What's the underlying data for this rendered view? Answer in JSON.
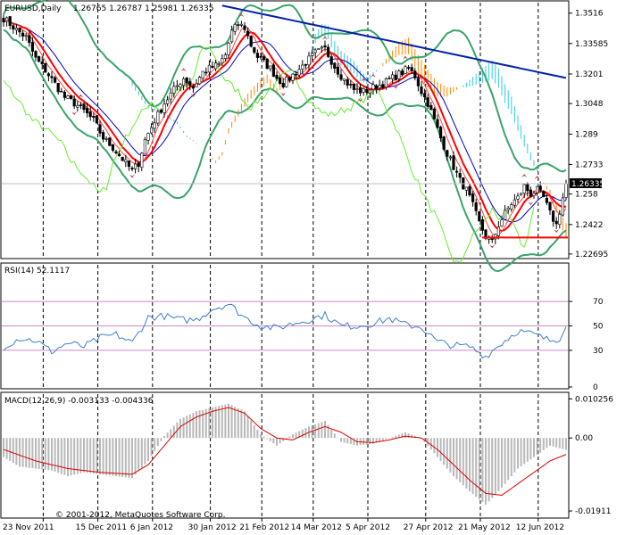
{
  "chart_header": {
    "symbol_period": "EURUSD,Daily",
    "quote": "1.26765 1.26787 1.25981 1.26335"
  },
  "rsi_header": {
    "label": "RSI(14) 52.1117"
  },
  "macd_header": {
    "label": "MACD(12,26,9) -0.003133 -0.004336"
  },
  "copyright": "© 2001-2012, MetaQuotes Software Corp.",
  "colors": {
    "background": "#ffffff",
    "candle_bull": "#ffffff",
    "candle_bear": "#000000",
    "bollinger": "#3aa36a",
    "ma_fast": "#ff0000",
    "ma_blue": "#0000cc",
    "ma_long": "#0022aa",
    "chikou": "#66ee33",
    "kumo_bull": "#ff8800",
    "kumo_bear": "#33ccdd",
    "fractal": "#cc3344",
    "rsi_line": "#3a7fd0",
    "rsi_levels": "#cc88cc",
    "macd_hist": "#b8b8b8",
    "macd_signal": "#dd0000",
    "current_price_box": "#000000"
  },
  "chart_data": [
    {
      "type": "candlestick",
      "panel": "price",
      "x_ticks": [
        "23 Nov 2011",
        "15 Dec 2011",
        "6 Jan 2012",
        "30 Jan 2012",
        "21 Feb 2012",
        "14 Mar 2012",
        "5 Apr 2012",
        "27 Apr 2012",
        "21 May 2012",
        "12 Jun 2012"
      ],
      "y_ticks": [
        1.3516,
        1.33585,
        1.3201,
        1.3048,
        1.289,
        1.2733,
        1.258,
        1.2422,
        1.22695
      ],
      "ylim": [
        1.2255,
        1.357
      ],
      "current_price": 1.26335,
      "support_level": 1.2355,
      "close_path": [
        [
          0,
          1.349
        ],
        [
          4,
          1.343
        ],
        [
          7,
          1.339
        ],
        [
          10,
          1.328
        ],
        [
          13,
          1.322
        ],
        [
          16,
          1.315
        ],
        [
          19,
          1.308
        ],
        [
          22,
          1.305
        ],
        [
          25,
          1.301
        ],
        [
          28,
          1.296
        ],
        [
          31,
          1.287
        ],
        [
          34,
          1.282
        ],
        [
          37,
          1.276
        ],
        [
          40,
          1.27
        ],
        [
          42,
          1.274
        ],
        [
          44,
          1.286
        ],
        [
          47,
          1.296
        ],
        [
          50,
          1.305
        ],
        [
          53,
          1.312
        ],
        [
          56,
          1.318
        ],
        [
          59,
          1.313
        ],
        [
          62,
          1.321
        ],
        [
          64,
          1.323
        ],
        [
          67,
          1.325
        ],
        [
          69,
          1.33
        ],
        [
          71,
          1.342
        ],
        [
          73,
          1.346
        ],
        [
          75,
          1.344
        ],
        [
          77,
          1.335
        ],
        [
          79,
          1.329
        ],
        [
          81,
          1.326
        ],
        [
          83,
          1.323
        ],
        [
          85,
          1.318
        ],
        [
          87,
          1.315
        ],
        [
          89,
          1.318
        ],
        [
          91,
          1.321
        ],
        [
          94,
          1.326
        ],
        [
          97,
          1.331
        ],
        [
          100,
          1.333
        ],
        [
          103,
          1.324
        ],
        [
          106,
          1.317
        ],
        [
          109,
          1.312
        ],
        [
          112,
          1.311
        ],
        [
          115,
          1.313
        ],
        [
          118,
          1.315
        ],
        [
          121,
          1.318
        ],
        [
          124,
          1.321
        ],
        [
          126,
          1.323
        ],
        [
          128,
          1.319
        ],
        [
          130,
          1.311
        ],
        [
          132,
          1.305
        ],
        [
          134,
          1.296
        ],
        [
          136,
          1.287
        ],
        [
          138,
          1.279
        ],
        [
          140,
          1.272
        ],
        [
          142,
          1.265
        ],
        [
          144,
          1.26
        ],
        [
          146,
          1.252
        ],
        [
          148,
          1.243
        ],
        [
          150,
          1.236
        ],
        [
          152,
          1.233
        ],
        [
          154,
          1.242
        ],
        [
          156,
          1.248
        ],
        [
          158,
          1.253
        ],
        [
          160,
          1.256
        ],
        [
          162,
          1.262
        ],
        [
          164,
          1.258
        ],
        [
          166,
          1.26
        ],
        [
          168,
          1.256
        ],
        [
          170,
          1.248
        ],
        [
          172,
          1.242
        ],
        [
          174,
          1.256
        ],
        [
          175,
          1.2634
        ]
      ]
    },
    {
      "type": "line",
      "panel": "rsi",
      "title": "RSI(14) 52.1117",
      "levels": [
        70,
        50,
        30
      ],
      "ylim": [
        0,
        100
      ],
      "y_ticks": [
        70,
        50,
        30,
        0
      ],
      "points": [
        [
          0,
          33
        ],
        [
          5,
          40
        ],
        [
          10,
          38
        ],
        [
          15,
          29
        ],
        [
          20,
          36
        ],
        [
          25,
          33
        ],
        [
          30,
          40
        ],
        [
          35,
          43
        ],
        [
          40,
          36
        ],
        [
          45,
          57
        ],
        [
          50,
          58
        ],
        [
          55,
          55
        ],
        [
          60,
          55
        ],
        [
          65,
          64
        ],
        [
          70,
          68
        ],
        [
          75,
          57
        ],
        [
          80,
          50
        ],
        [
          85,
          48
        ],
        [
          90,
          52
        ],
        [
          95,
          55
        ],
        [
          100,
          59
        ],
        [
          105,
          50
        ],
        [
          110,
          50
        ],
        [
          115,
          52
        ],
        [
          120,
          56
        ],
        [
          125,
          51
        ],
        [
          130,
          49
        ],
        [
          135,
          37
        ],
        [
          140,
          34
        ],
        [
          145,
          33
        ],
        [
          150,
          25
        ],
        [
          155,
          36
        ],
        [
          160,
          46
        ],
        [
          165,
          43
        ],
        [
          170,
          38
        ],
        [
          173,
          40
        ],
        [
          175,
          52
        ]
      ]
    },
    {
      "type": "bar",
      "panel": "macd",
      "title": "MACD(12,26,9) -0.003133 -0.004336",
      "ylim": [
        -0.0205,
        0.0115
      ],
      "y_ticks": [
        0.010256,
        0.0,
        -0.01911
      ],
      "histogram": [
        [
          0,
          -0.005
        ],
        [
          5,
          -0.0075
        ],
        [
          10,
          -0.008
        ],
        [
          15,
          -0.0085
        ],
        [
          20,
          -0.01
        ],
        [
          25,
          -0.009
        ],
        [
          30,
          -0.0095
        ],
        [
          35,
          -0.01
        ],
        [
          40,
          -0.0105
        ],
        [
          45,
          -0.006
        ],
        [
          50,
          0.0005
        ],
        [
          55,
          0.005
        ],
        [
          60,
          0.007
        ],
        [
          65,
          0.008
        ],
        [
          70,
          0.009
        ],
        [
          75,
          0.007
        ],
        [
          80,
          0.001
        ],
        [
          85,
          -0.002
        ],
        [
          90,
          0.001
        ],
        [
          95,
          0.003
        ],
        [
          100,
          0.0045
        ],
        [
          105,
          -0.001
        ],
        [
          110,
          -0.002
        ],
        [
          115,
          -0.0015
        ],
        [
          120,
          0.0
        ],
        [
          125,
          0.0015
        ],
        [
          130,
          0.0
        ],
        [
          135,
          -0.005
        ],
        [
          140,
          -0.01
        ],
        [
          145,
          -0.014
        ],
        [
          150,
          -0.0175
        ],
        [
          155,
          -0.013
        ],
        [
          160,
          -0.008
        ],
        [
          165,
          -0.005
        ],
        [
          170,
          -0.002
        ],
        [
          175,
          -0.0031
        ]
      ],
      "signal": [
        [
          0,
          -0.003
        ],
        [
          10,
          -0.006
        ],
        [
          20,
          -0.008
        ],
        [
          30,
          -0.009
        ],
        [
          40,
          -0.0095
        ],
        [
          45,
          -0.007
        ],
        [
          50,
          -0.002
        ],
        [
          55,
          0.003
        ],
        [
          60,
          0.0055
        ],
        [
          65,
          0.007
        ],
        [
          70,
          0.008
        ],
        [
          75,
          0.0065
        ],
        [
          80,
          0.0025
        ],
        [
          85,
          0.0
        ],
        [
          90,
          -0.0005
        ],
        [
          95,
          0.0015
        ],
        [
          100,
          0.003
        ],
        [
          105,
          0.0015
        ],
        [
          110,
          -0.001
        ],
        [
          115,
          -0.0012
        ],
        [
          120,
          -0.0005
        ],
        [
          125,
          0.0005
        ],
        [
          130,
          0.0
        ],
        [
          135,
          -0.003
        ],
        [
          140,
          -0.007
        ],
        [
          145,
          -0.011
        ],
        [
          150,
          -0.0145
        ],
        [
          155,
          -0.015
        ],
        [
          160,
          -0.012
        ],
        [
          165,
          -0.009
        ],
        [
          170,
          -0.006
        ],
        [
          175,
          -0.0043
        ]
      ]
    }
  ]
}
